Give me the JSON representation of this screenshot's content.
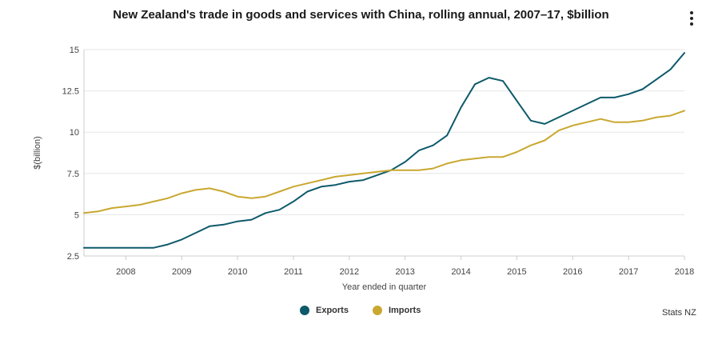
{
  "title": "New Zealand's trade in goods and services with China, rolling annual, 2007–17, $billion",
  "credit": "Stats NZ",
  "colors": {
    "exports": "#0e5a6b",
    "imports": "#c9a830",
    "grid": "#e6e6e6",
    "axis": "#cccccc"
  },
  "chart_data": {
    "type": "line",
    "title": "New Zealand's trade in goods and services with China, rolling annual, 2007–17, $billion",
    "xlabel": "Year ended in quarter",
    "ylabel": "$(billion)",
    "ylim": [
      2.5,
      15
    ],
    "yticks": [
      2.5,
      5,
      7.5,
      10,
      12.5,
      15
    ],
    "ytick_labels": [
      "2.5",
      "5",
      "7.5",
      "10",
      "12.5",
      "15"
    ],
    "xlim": [
      2007.25,
      2018.0
    ],
    "xticks": [
      2008,
      2009,
      2010,
      2011,
      2012,
      2013,
      2014,
      2015,
      2016,
      2017,
      2018
    ],
    "xtick_labels": [
      "2008",
      "2009",
      "2010",
      "2011",
      "2012",
      "2013",
      "2014",
      "2015",
      "2016",
      "2017",
      "2018"
    ],
    "grid": true,
    "legend_position": "bottom-center",
    "x": [
      2007.25,
      2007.5,
      2007.75,
      2008.0,
      2008.25,
      2008.5,
      2008.75,
      2009.0,
      2009.25,
      2009.5,
      2009.75,
      2010.0,
      2010.25,
      2010.5,
      2010.75,
      2011.0,
      2011.25,
      2011.5,
      2011.75,
      2012.0,
      2012.25,
      2012.5,
      2012.75,
      2013.0,
      2013.25,
      2013.5,
      2013.75,
      2014.0,
      2014.25,
      2014.5,
      2014.75,
      2015.0,
      2015.25,
      2015.5,
      2015.75,
      2016.0,
      2016.25,
      2016.5,
      2016.75,
      2017.0,
      2017.25,
      2017.5,
      2017.75,
      2018.0
    ],
    "series": [
      {
        "name": "Exports",
        "values": [
          3.0,
          3.0,
          3.0,
          3.0,
          3.0,
          3.0,
          3.2,
          3.5,
          3.9,
          4.3,
          4.4,
          4.6,
          4.7,
          5.1,
          5.3,
          5.8,
          6.4,
          6.7,
          6.8,
          7.0,
          7.1,
          7.4,
          7.7,
          8.2,
          8.9,
          9.2,
          9.8,
          11.5,
          12.9,
          13.3,
          13.1,
          11.9,
          10.7,
          10.5,
          10.9,
          11.3,
          11.7,
          12.1,
          12.1,
          12.3,
          12.6,
          13.2,
          13.8,
          14.8
        ]
      },
      {
        "name": "Imports",
        "values": [
          5.1,
          5.2,
          5.4,
          5.5,
          5.6,
          5.8,
          6.0,
          6.3,
          6.5,
          6.6,
          6.4,
          6.1,
          6.0,
          6.1,
          6.4,
          6.7,
          6.9,
          7.1,
          7.3,
          7.4,
          7.5,
          7.6,
          7.7,
          7.7,
          7.7,
          7.8,
          8.1,
          8.3,
          8.4,
          8.5,
          8.5,
          8.8,
          9.2,
          9.5,
          10.1,
          10.4,
          10.6,
          10.8,
          10.6,
          10.6,
          10.7,
          10.9,
          11.0,
          11.3
        ]
      }
    ]
  }
}
